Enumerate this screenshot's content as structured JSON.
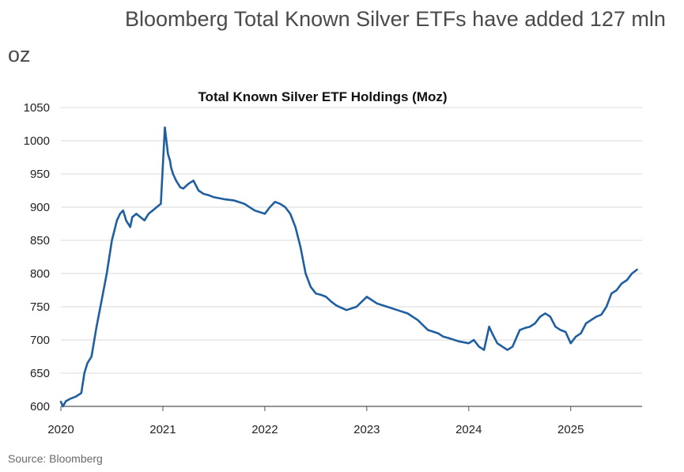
{
  "headline": "Bloomberg Total Known Silver ETFs have added 127 mln oz",
  "source": "Source: Bloomberg",
  "colors": {
    "line": "#1f5fa0",
    "grid": "#d9d9d9",
    "axis": "#555555"
  },
  "chart_data": {
    "type": "line",
    "title": "Total Known Silver ETF Holdings (Moz)",
    "xlabel": "",
    "ylabel": "",
    "xlim": [
      2020.0,
      2025.7
    ],
    "ylim": [
      600,
      1050
    ],
    "yticks": [
      600,
      650,
      700,
      750,
      800,
      850,
      900,
      950,
      1000,
      1050
    ],
    "xticks": [
      {
        "value": 2020,
        "label": "2020"
      },
      {
        "value": 2021,
        "label": "2021"
      },
      {
        "value": 2022,
        "label": "2022"
      },
      {
        "value": 2023,
        "label": "2023"
      },
      {
        "value": 2024,
        "label": "2024"
      },
      {
        "value": 2025,
        "label": "2025"
      }
    ],
    "grid": true,
    "series": [
      {
        "x": [
          2020.0,
          2020.02,
          2020.05,
          2020.1,
          2020.15,
          2020.2,
          2020.23,
          2020.26,
          2020.3,
          2020.35,
          2020.4,
          2020.45,
          2020.5,
          2020.55,
          2020.58,
          2020.61,
          2020.64,
          2020.68,
          2020.7,
          2020.74,
          2020.78,
          2020.82,
          2020.86,
          2020.9,
          2020.94,
          2020.98,
          2021.02,
          2021.05,
          2021.07,
          2021.08,
          2021.1,
          2021.13,
          2021.17,
          2021.2,
          2021.25,
          2021.3,
          2021.35,
          2021.4,
          2021.45,
          2021.5,
          2021.6,
          2021.7,
          2021.8,
          2021.9,
          2022.0,
          2022.05,
          2022.1,
          2022.15,
          2022.2,
          2022.25,
          2022.3,
          2022.35,
          2022.4,
          2022.45,
          2022.5,
          2022.55,
          2022.6,
          2022.65,
          2022.7,
          2022.8,
          2022.9,
          2023.0,
          2023.1,
          2023.2,
          2023.3,
          2023.4,
          2023.5,
          2023.6,
          2023.7,
          2023.75,
          2023.8,
          2023.9,
          2024.0,
          2024.05,
          2024.1,
          2024.15,
          2024.2,
          2024.23,
          2024.28,
          2024.33,
          2024.38,
          2024.43,
          2024.5,
          2024.55,
          2024.6,
          2024.65,
          2024.7,
          2024.75,
          2024.8,
          2024.85,
          2024.9,
          2024.95,
          2025.0,
          2025.05,
          2025.1,
          2025.15,
          2025.2,
          2025.25,
          2025.3,
          2025.35,
          2025.4,
          2025.45,
          2025.5,
          2025.55,
          2025.6,
          2025.65
        ],
        "y": [
          607,
          600,
          608,
          612,
          615,
          620,
          650,
          665,
          675,
          720,
          760,
          800,
          850,
          880,
          890,
          895,
          880,
          870,
          885,
          890,
          885,
          880,
          890,
          895,
          900,
          905,
          1020,
          980,
          970,
          960,
          950,
          940,
          930,
          928,
          935,
          940,
          925,
          920,
          918,
          915,
          912,
          910,
          905,
          895,
          890,
          900,
          908,
          905,
          900,
          890,
          870,
          840,
          800,
          780,
          770,
          768,
          765,
          758,
          752,
          745,
          750,
          765,
          755,
          750,
          745,
          740,
          730,
          715,
          710,
          705,
          703,
          698,
          695,
          700,
          690,
          685,
          720,
          710,
          695,
          690,
          685,
          690,
          715,
          718,
          720,
          725,
          735,
          740,
          735,
          720,
          715,
          712,
          695,
          705,
          710,
          725,
          730,
          735,
          738,
          750,
          770,
          775,
          785,
          790,
          800,
          806
        ]
      }
    ]
  }
}
